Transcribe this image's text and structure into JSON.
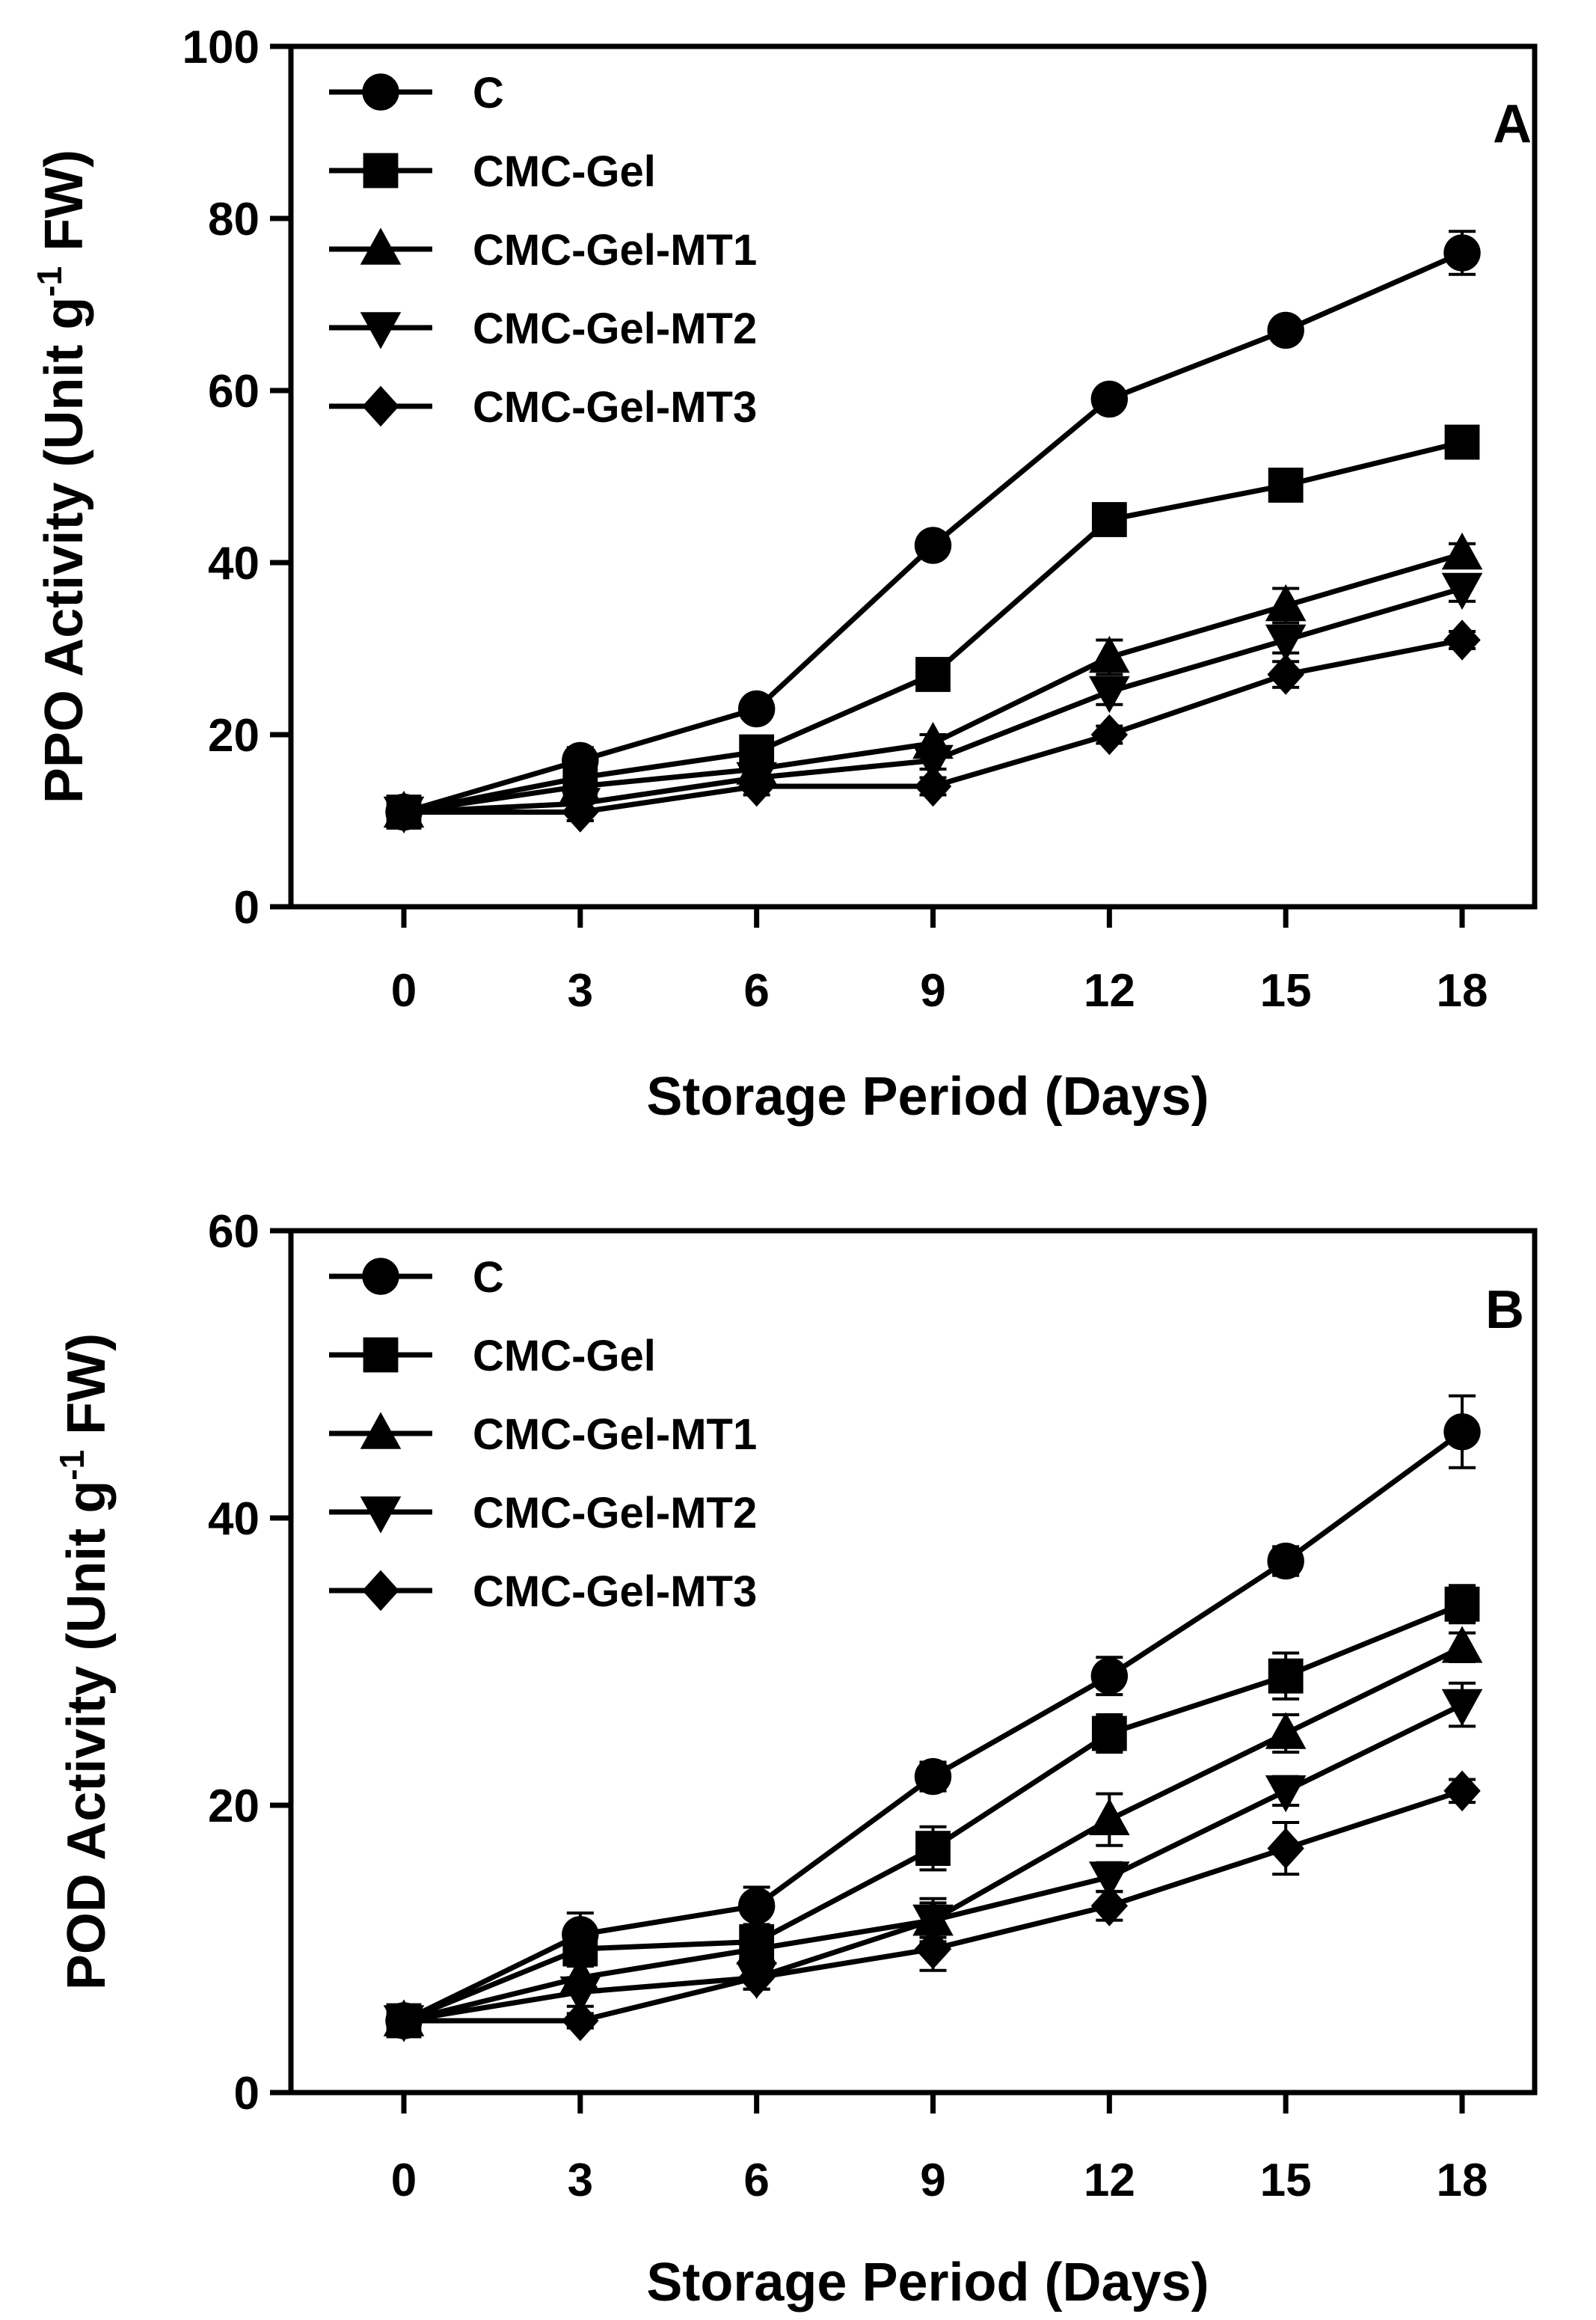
{
  "chart_data": [
    {
      "type": "line",
      "panel_letter": "A",
      "xlabel": "Storage Period (Days)",
      "ylabel_main": "PPO Activity (Unit g",
      "ylabel_sup": "-1",
      "ylabel_tail": " FW)",
      "x": [
        0,
        3,
        6,
        9,
        12,
        15,
        18
      ],
      "xticks": [
        "0",
        "3",
        "6",
        "9",
        "12",
        "15",
        "18"
      ],
      "ylim": [
        0,
        100
      ],
      "yticks": [
        0,
        20,
        40,
        60,
        80,
        100
      ],
      "legend_position": "top-left",
      "series": [
        {
          "name": "C",
          "marker": "circle",
          "values": [
            11,
            17,
            23,
            42,
            59,
            67,
            76
          ],
          "errors": [
            0.8,
            1.5,
            1.2,
            1.0,
            1.0,
            0.8,
            2.5
          ]
        },
        {
          "name": "CMC-Gel",
          "marker": "square",
          "values": [
            11,
            15,
            18,
            27,
            45,
            49,
            54
          ],
          "errors": [
            0.8,
            1.2,
            1.0,
            1.0,
            1.2,
            1.0,
            1.0
          ]
        },
        {
          "name": "CMC-Gel-MT1",
          "marker": "triangle-up",
          "values": [
            11,
            14,
            16,
            19,
            29,
            35,
            41
          ],
          "errors": [
            0.8,
            1.0,
            1.0,
            1.0,
            2.0,
            2.0,
            1.2
          ]
        },
        {
          "name": "CMC-Gel-MT2",
          "marker": "triangle-down",
          "values": [
            11,
            12,
            15,
            17,
            25,
            31,
            37
          ],
          "errors": [
            0.8,
            2.0,
            1.0,
            1.0,
            1.5,
            1.5,
            1.5
          ]
        },
        {
          "name": "CMC-Gel-MT3",
          "marker": "diamond",
          "values": [
            11,
            11,
            14,
            14,
            20,
            27,
            31
          ],
          "errors": [
            0.8,
            1.0,
            1.0,
            1.0,
            1.0,
            1.5,
            1.0
          ]
        }
      ]
    },
    {
      "type": "line",
      "panel_letter": "B",
      "xlabel": "Storage Period (Days)",
      "ylabel_main": "POD Activity (Unit g",
      "ylabel_sup": "-1",
      "ylabel_tail": " FW)",
      "x": [
        0,
        3,
        6,
        9,
        12,
        15,
        18
      ],
      "xticks": [
        "0",
        "3",
        "6",
        "9",
        "12",
        "15",
        "18"
      ],
      "ylim": [
        0,
        60
      ],
      "yticks": [
        0,
        20,
        40,
        60
      ],
      "legend_position": "top-left",
      "series": [
        {
          "name": "C",
          "marker": "circle",
          "values": [
            5,
            11,
            13,
            22,
            29,
            37,
            46
          ],
          "errors": [
            0.4,
            1.5,
            1.3,
            1.0,
            1.3,
            1.0,
            2.5
          ]
        },
        {
          "name": "CMC-Gel",
          "marker": "square",
          "values": [
            5,
            10,
            10.5,
            17,
            25,
            29,
            34
          ],
          "errors": [
            0.4,
            1.2,
            1.0,
            1.5,
            1.3,
            1.6,
            1.3
          ]
        },
        {
          "name": "CMC-Gel-MT1",
          "marker": "triangle-up",
          "values": [
            5,
            8,
            10,
            12,
            19,
            25,
            31
          ],
          "errors": [
            0.4,
            1.0,
            1.0,
            1.2,
            1.8,
            1.3,
            1.0
          ]
        },
        {
          "name": "CMC-Gel-MT2",
          "marker": "triangle-down",
          "values": [
            5,
            7,
            8,
            12,
            15,
            21,
            27
          ],
          "errors": [
            0.4,
            1.0,
            0.8,
            1.5,
            1.0,
            1.0,
            1.5
          ]
        },
        {
          "name": "CMC-Gel-MT3",
          "marker": "diamond",
          "values": [
            5,
            5,
            8,
            10,
            13,
            17,
            21
          ],
          "errors": [
            0.4,
            0.5,
            0.8,
            1.5,
            1.0,
            1.8,
            0.8
          ]
        }
      ]
    }
  ]
}
